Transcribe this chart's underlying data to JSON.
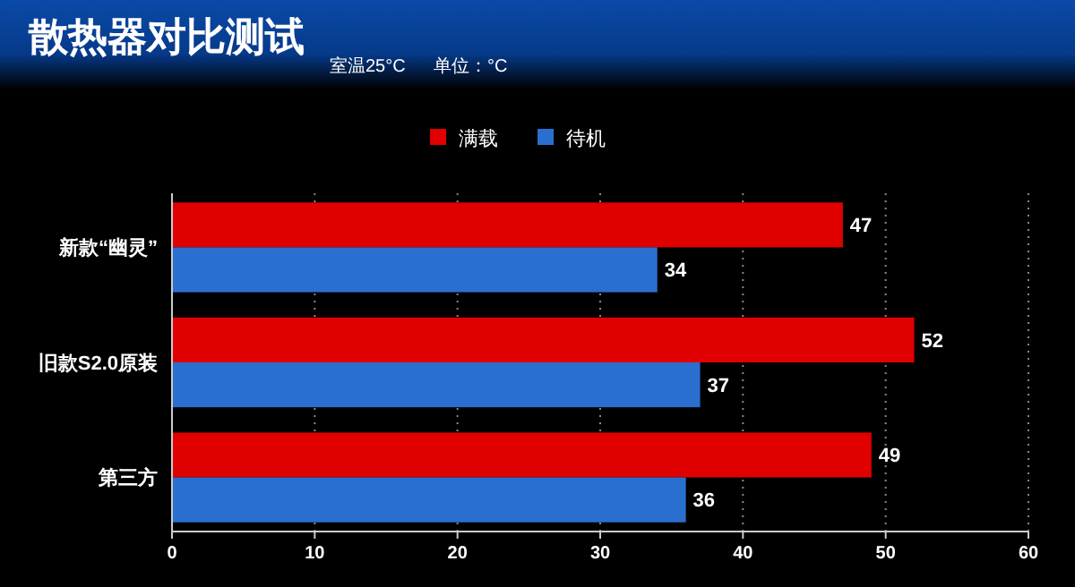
{
  "chart_data": {
    "type": "bar",
    "orientation": "horizontal",
    "title": "散热器对比测试",
    "annotations": [
      "室温25°C",
      "单位：°C"
    ],
    "categories": [
      "新款“幽灵”",
      "旧款S2.0原装",
      "第三方"
    ],
    "series": [
      {
        "name": "满载",
        "color": "#e00000",
        "values": [
          47,
          52,
          49
        ]
      },
      {
        "name": "待机",
        "color": "#2a6fcf",
        "values": [
          34,
          37,
          36
        ]
      }
    ],
    "xlim": [
      0,
      60
    ],
    "xticks": [
      0,
      10,
      20,
      30,
      40,
      50,
      60
    ],
    "grid": "x",
    "legend": "top",
    "data_labels": true
  }
}
